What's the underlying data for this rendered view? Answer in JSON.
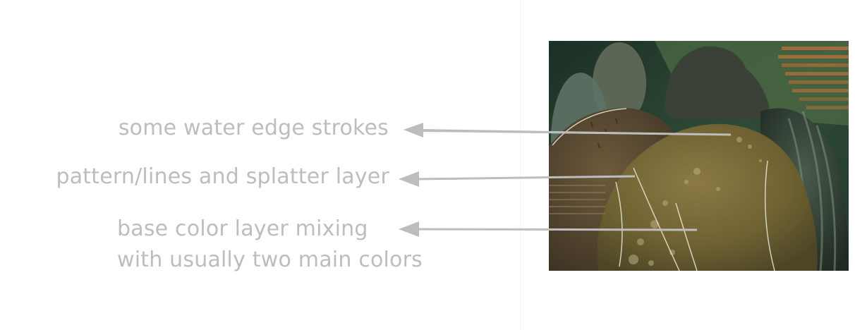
{
  "annotations": {
    "water_edge": "some water edge strokes",
    "pattern": "pattern/lines and splatter layer",
    "base_line1": "base color layer mixing",
    "base_line2": "with usually two main colors"
  },
  "colors": {
    "label": "#bdbdbd",
    "arrow": "#bdbdbd",
    "background": "#ffffff",
    "dark_green": "#22372b",
    "olive": "#7a6a38",
    "stripe_orange": "#b0703a"
  },
  "image": {
    "subject": "painted-rocks-illustration"
  }
}
